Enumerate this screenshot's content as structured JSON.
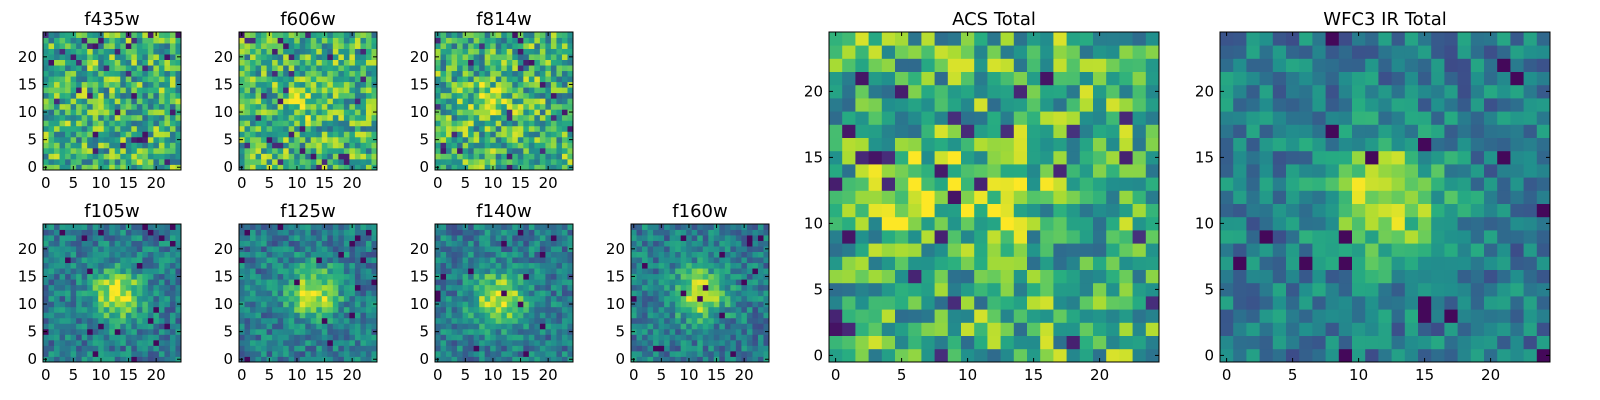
{
  "chart_data": [
    {
      "type": "heatmap",
      "title": "f435w",
      "grid_size": 25,
      "xticks": [
        0,
        5,
        10,
        15,
        20
      ],
      "yticks": [
        0,
        5,
        10,
        15,
        20
      ],
      "colormap": "viridis",
      "pattern": "noise",
      "hotspots": []
    },
    {
      "type": "heatmap",
      "title": "f606w",
      "grid_size": 25,
      "xticks": [
        0,
        5,
        10,
        15,
        20
      ],
      "yticks": [
        0,
        5,
        10,
        15,
        20
      ],
      "colormap": "viridis",
      "pattern": "noise",
      "hotspots": [
        [
          11,
          12
        ]
      ]
    },
    {
      "type": "heatmap",
      "title": "f814w",
      "grid_size": 25,
      "xticks": [
        0,
        5,
        10,
        15,
        20
      ],
      "yticks": [
        0,
        5,
        10,
        15,
        20
      ],
      "colormap": "viridis",
      "pattern": "noise",
      "hotspots": [
        [
          10,
          12
        ]
      ]
    },
    {
      "type": "heatmap",
      "title": "f105w",
      "grid_size": 25,
      "xticks": [
        0,
        5,
        10,
        15,
        20
      ],
      "yticks": [
        0,
        5,
        10,
        15,
        20
      ],
      "colormap": "viridis",
      "pattern": "source",
      "hotspots": [
        [
          13,
          12
        ]
      ]
    },
    {
      "type": "heatmap",
      "title": "f125w",
      "grid_size": 25,
      "xticks": [
        0,
        5,
        10,
        15,
        20
      ],
      "yticks": [
        0,
        5,
        10,
        15,
        20
      ],
      "colormap": "viridis",
      "pattern": "source",
      "hotspots": [
        [
          13,
          12
        ]
      ]
    },
    {
      "type": "heatmap",
      "title": "f140w",
      "grid_size": 25,
      "xticks": [
        0,
        5,
        10,
        15,
        20
      ],
      "yticks": [
        0,
        5,
        10,
        15,
        20
      ],
      "colormap": "viridis",
      "pattern": "source",
      "hotspots": [
        [
          11,
          11
        ]
      ]
    },
    {
      "type": "heatmap",
      "title": "f160w",
      "grid_size": 25,
      "xticks": [
        0,
        5,
        10,
        15,
        20
      ],
      "yticks": [
        0,
        5,
        10,
        15,
        20
      ],
      "colormap": "viridis",
      "pattern": "source",
      "hotspots": [
        [
          12,
          12
        ]
      ]
    },
    {
      "type": "heatmap",
      "title": "ACS Total",
      "grid_size": 25,
      "xticks": [
        0,
        5,
        10,
        15,
        20
      ],
      "yticks": [
        0,
        5,
        10,
        15,
        20
      ],
      "colormap": "viridis",
      "pattern": "noise",
      "hotspots": [
        [
          6,
          12
        ],
        [
          12,
          12
        ]
      ]
    },
    {
      "type": "heatmap",
      "title": "WFC3 IR Total",
      "grid_size": 25,
      "xticks": [
        0,
        5,
        10,
        15,
        20
      ],
      "yticks": [
        0,
        5,
        10,
        15,
        20
      ],
      "colormap": "viridis",
      "pattern": "source",
      "hotspots": [
        [
          12,
          12
        ]
      ]
    }
  ]
}
